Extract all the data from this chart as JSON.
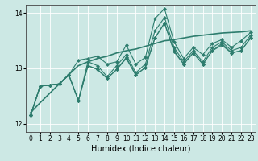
{
  "xlabel": "Humidex (Indice chaleur)",
  "bg_color": "#cce8e4",
  "line_color": "#2e7d6e",
  "grid_color": "#ffffff",
  "xmin": -0.5,
  "xmax": 23.5,
  "ymin": 11.85,
  "ymax": 14.15,
  "yticks": [
    12,
    13,
    14
  ],
  "xticks": [
    0,
    1,
    2,
    3,
    4,
    5,
    6,
    7,
    8,
    9,
    10,
    11,
    12,
    13,
    14,
    15,
    16,
    17,
    18,
    19,
    20,
    21,
    22,
    23
  ],
  "series": [
    [
      12.15,
      12.68,
      12.7,
      12.72,
      12.88,
      12.42,
      13.12,
      13.05,
      12.85,
      13.05,
      13.25,
      12.92,
      13.08,
      13.68,
      13.92,
      13.38,
      13.12,
      13.32,
      13.12,
      13.38,
      13.48,
      13.32,
      13.38,
      13.6
    ],
    [
      12.15,
      12.68,
      12.7,
      12.72,
      12.88,
      13.15,
      13.18,
      13.22,
      13.08,
      13.12,
      13.42,
      13.08,
      13.2,
      13.9,
      14.08,
      13.48,
      13.18,
      13.38,
      13.25,
      13.45,
      13.52,
      13.38,
      13.5,
      13.65
    ],
    [
      12.15,
      12.68,
      12.7,
      12.72,
      12.88,
      12.42,
      13.05,
      12.98,
      12.82,
      12.98,
      13.2,
      12.88,
      13.02,
      13.55,
      13.82,
      13.32,
      13.08,
      13.28,
      13.08,
      13.32,
      13.45,
      13.28,
      13.32,
      13.55
    ],
    [
      12.15,
      12.68,
      12.7,
      12.72,
      12.88,
      12.42,
      13.05,
      12.98,
      12.82,
      12.98,
      13.18,
      12.88,
      13.02,
      13.55,
      13.82,
      13.3,
      13.08,
      13.28,
      13.08,
      13.32,
      13.42,
      13.28,
      13.32,
      13.55
    ]
  ],
  "trend": [
    12.2,
    12.38,
    12.55,
    12.72,
    12.89,
    13.05,
    13.12,
    13.18,
    13.22,
    13.28,
    13.32,
    13.35,
    13.4,
    13.45,
    13.5,
    13.52,
    13.55,
    13.58,
    13.6,
    13.62,
    13.64,
    13.65,
    13.66,
    13.68
  ],
  "marker": "D",
  "markersize": 2.0,
  "linewidth": 0.8,
  "tick_fontsize": 5.5,
  "xlabel_fontsize": 7.0
}
